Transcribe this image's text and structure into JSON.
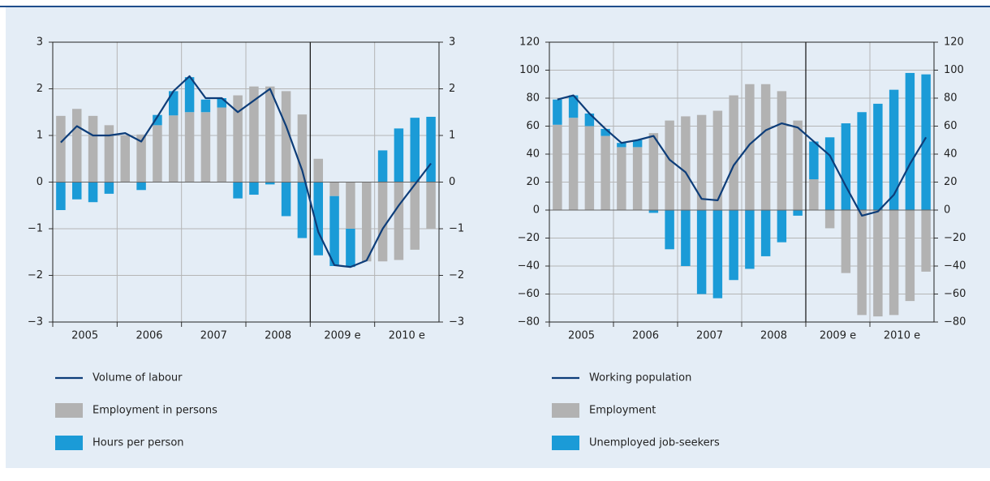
{
  "chart_data": [
    {
      "type": "bar",
      "categories": [
        null,
        null,
        null,
        null,
        null,
        null,
        null,
        null,
        null,
        null,
        null,
        null,
        null,
        null,
        null,
        null,
        null,
        null,
        null,
        null,
        null,
        null,
        null,
        null
      ],
      "year_labels": [
        "2005",
        "2006",
        "2007",
        "2008",
        "2009 e",
        "2010 e"
      ],
      "divider_at": 16,
      "ylim": [
        -3,
        3
      ],
      "yticks": [
        {
          "value": -3,
          "label": "−3"
        },
        {
          "value": -2,
          "label": "−2"
        },
        {
          "value": -1,
          "label": "−1"
        },
        0,
        1,
        2,
        3
      ],
      "y2lim": [
        -3,
        3
      ],
      "y2ticks": [
        {
          "value": -3,
          "label": "−3"
        },
        {
          "value": -2,
          "label": "−2"
        },
        {
          "value": -1,
          "label": "−1"
        },
        0,
        1,
        2,
        3
      ],
      "grid": true,
      "series": [
        {
          "name": "Volume of labour",
          "type": "line",
          "color": "#0d3d79",
          "values": [
            0.85,
            1.2,
            1.0,
            1.0,
            1.05,
            0.87,
            1.4,
            1.95,
            2.27,
            1.8,
            1.8,
            1.5,
            1.75,
            2.0,
            1.2,
            0.25,
            -1.07,
            -1.78,
            -1.82,
            -1.68,
            -1.0,
            -0.5,
            -0.05,
            0.4
          ]
        },
        {
          "name": "Employment in persons",
          "type": "bar",
          "color": "#b2b2b2",
          "values": [
            1.42,
            1.57,
            1.42,
            1.22,
            1.0,
            1.02,
            1.22,
            1.43,
            1.5,
            1.5,
            1.6,
            1.86,
            2.05,
            2.05,
            1.95,
            1.45,
            0.5,
            -0.3,
            -1.0,
            -1.7,
            -1.7,
            -1.67,
            -1.45,
            -1.0
          ]
        },
        {
          "name": "Hours per person",
          "type": "bar",
          "color": "#1b9bd7",
          "values": [
            -0.6,
            -0.37,
            -0.43,
            -0.25,
            0,
            -0.17,
            0.22,
            0.52,
            0.75,
            0.27,
            0.2,
            -0.35,
            -0.27,
            -0.05,
            -0.73,
            -1.2,
            -1.57,
            -1.5,
            -0.82,
            0,
            0.68,
            1.15,
            1.38,
            1.4
          ]
        }
      ]
    },
    {
      "type": "bar",
      "categories": [
        null,
        null,
        null,
        null,
        null,
        null,
        null,
        null,
        null,
        null,
        null,
        null,
        null,
        null,
        null,
        null,
        null,
        null,
        null,
        null,
        null,
        null,
        null,
        null
      ],
      "year_labels": [
        "2005",
        "2006",
        "2007",
        "2008",
        "2009 e",
        "2010 e"
      ],
      "divider_at": 16,
      "ylim": [
        -80,
        120
      ],
      "yticks": [
        {
          "value": -80,
          "label": "−80"
        },
        {
          "value": -60,
          "label": "−60"
        },
        {
          "value": -40,
          "label": "−40"
        },
        {
          "value": -20,
          "label": "−20"
        },
        0,
        20,
        40,
        60,
        80,
        100,
        120
      ],
      "y2lim": [
        -80,
        120
      ],
      "y2ticks": [
        {
          "value": -80,
          "label": "−80"
        },
        {
          "value": -60,
          "label": "−60"
        },
        {
          "value": -40,
          "label": "−40"
        },
        {
          "value": -20,
          "label": "−20"
        },
        0,
        20,
        40,
        60,
        80,
        100,
        120
      ],
      "grid": true,
      "series": [
        {
          "name": "Working population",
          "type": "line",
          "color": "#0d3d79",
          "values": [
            79,
            82,
            69,
            58,
            48,
            50,
            53,
            36,
            27,
            8,
            7,
            32,
            47,
            57,
            62,
            59,
            49,
            39,
            17,
            -4,
            -1,
            11,
            33,
            52
          ]
        },
        {
          "name": "Employment",
          "type": "bar",
          "color": "#b2b2b2",
          "values": [
            61,
            66,
            60,
            53,
            45,
            45,
            55,
            64,
            67,
            68,
            71,
            82,
            90,
            90,
            85,
            64,
            22,
            -13,
            -45,
            -75,
            -76,
            -75,
            -65,
            -44
          ]
        },
        {
          "name": "Unemployed job-seekers",
          "type": "bar",
          "color": "#1b9bd7",
          "values": [
            18,
            16,
            9,
            5,
            3,
            5,
            -2,
            -28,
            -40,
            -60,
            -63,
            -50,
            -42,
            -33,
            -23,
            -4,
            27,
            52,
            62,
            70,
            76,
            86,
            98,
            97
          ]
        }
      ]
    }
  ]
}
